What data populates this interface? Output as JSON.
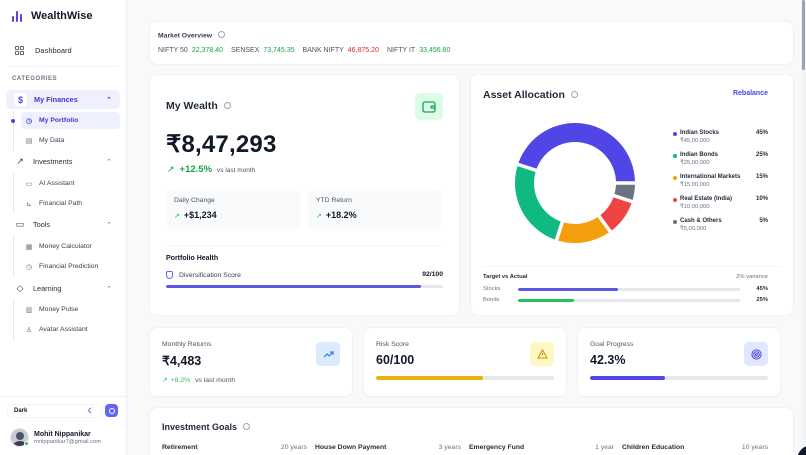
{
  "brand": {
    "name": "WealthWise",
    "logo_icon": "bar-chart-icon"
  },
  "sidebar": {
    "dashboard": {
      "label": "Dashboard",
      "icon": "grid-icon"
    },
    "categories_label": "CATEGORIES",
    "groups": [
      {
        "label": "My Finances",
        "icon": "dollar-icon",
        "expanded": true,
        "active": true,
        "items": [
          {
            "label": "My Portfolio",
            "icon": "pie-icon",
            "active": true
          },
          {
            "label": "My Data",
            "icon": "database-icon"
          }
        ]
      },
      {
        "label": "Investments",
        "icon": "trending-up-icon",
        "expanded": true,
        "items": [
          {
            "label": "AI Assistant",
            "icon": "message-icon"
          },
          {
            "label": "Financial Path",
            "icon": "line-chart-icon"
          }
        ]
      },
      {
        "label": "Tools",
        "icon": "message-square-icon",
        "expanded": true,
        "items": [
          {
            "label": "Money Calculator",
            "icon": "calculator-icon"
          },
          {
            "label": "Financial Prediction",
            "icon": "clock-icon"
          }
        ]
      },
      {
        "label": "Learning",
        "icon": "graduation-cap-icon",
        "expanded": true,
        "items": [
          {
            "label": "Money Pulse",
            "icon": "newspaper-icon"
          },
          {
            "label": "Avatar Assistant",
            "icon": "user-icon"
          }
        ]
      }
    ],
    "theme": {
      "label": "Dark",
      "icon": "moon-icon"
    },
    "user": {
      "name": "Mohit Nippanikar",
      "email": "mnippanikar7@gmail.com"
    }
  },
  "market": {
    "title": "Market Overview",
    "tickers": [
      {
        "name": "NIFTY 50",
        "value": "22,378.40",
        "trend": "up"
      },
      {
        "name": "SENSEX",
        "value": "73,745.35",
        "trend": "up"
      },
      {
        "name": "BANK NIFTY",
        "value": "46,875.20",
        "trend": "down"
      },
      {
        "name": "NIFTY IT",
        "value": "33,456.80",
        "trend": "up"
      }
    ]
  },
  "wealth": {
    "title": "My Wealth",
    "amount": "₹8,47,293",
    "change_pct": "+12.5%",
    "change_label": "vs last month",
    "daily_change": {
      "label": "Daily Change",
      "value": "+$1,234"
    },
    "ytd_return": {
      "label": "YTD Return",
      "value": "+18.2%"
    },
    "health": {
      "title": "Portfolio Health",
      "metric": "Diversification Score",
      "score": "92/100",
      "percent": 92
    }
  },
  "allocation": {
    "title": "Asset Allocation",
    "rebalance_label": "Rebalance",
    "target_vs_actual": {
      "title": "Target vs Actual",
      "variance": "2% variance",
      "rows": [
        {
          "label": "Stocks",
          "value": "45%",
          "percent": 45,
          "color": "#5b55e0"
        },
        {
          "label": "Bonds",
          "value": "25%",
          "percent": 25,
          "color": "#22c55e"
        }
      ]
    }
  },
  "chart_data": {
    "type": "pie",
    "title": "Asset Allocation",
    "donut": true,
    "categories": [
      "Indian Stocks",
      "Indian Bonds",
      "International Markets",
      "Real Estate (India)",
      "Cash & Others"
    ],
    "values": [
      45,
      25,
      15,
      10,
      5
    ],
    "amounts": [
      "₹45,00,000",
      "₹25,00,000",
      "₹15,00,000",
      "₹10,00,000",
      "₹5,00,000"
    ],
    "labels": [
      "45%",
      "25%",
      "15%",
      "10%",
      "5%"
    ],
    "colors": [
      "#4f46e5",
      "#10b981",
      "#f59e0b",
      "#ef4444",
      "#6b7280"
    ],
    "legend_position": "right"
  },
  "metrics": {
    "monthly_returns": {
      "label": "Monthly Returns",
      "value": "₹4,483",
      "change": "+8.2%",
      "change_label": "vs last month",
      "icon": "trending-up-icon"
    },
    "risk_score": {
      "label": "Risk Score",
      "value": "60/100",
      "percent": 60,
      "color": "#eab308",
      "icon": "warning-icon"
    },
    "goal_progress": {
      "label": "Goal Progress",
      "value": "42.3%",
      "percent": 42.3,
      "color": "#4f46e5",
      "icon": "target-icon"
    }
  },
  "goals": {
    "title": "Investment Goals",
    "items": [
      {
        "name": "Retirement",
        "years": "20 years"
      },
      {
        "name": "House Down Payment",
        "years": "3 years"
      },
      {
        "name": "Emergency Fund",
        "years": "1 year"
      },
      {
        "name": "Children Education",
        "years": "10 years"
      }
    ]
  }
}
